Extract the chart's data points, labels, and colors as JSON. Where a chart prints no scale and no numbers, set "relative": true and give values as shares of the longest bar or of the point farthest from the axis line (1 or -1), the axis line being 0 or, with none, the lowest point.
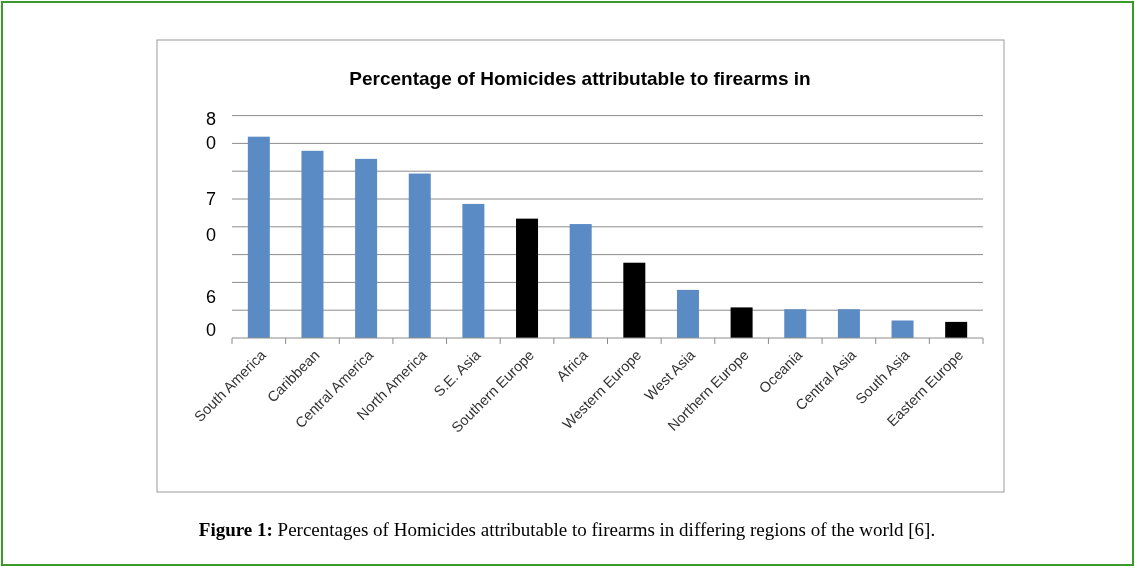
{
  "chart_data": {
    "type": "bar",
    "title": "Percentage of Homicides attributable to firearms in",
    "categories": [
      "South America",
      "Caribbean",
      "Central America",
      "North America",
      "S.E. Asia",
      "Southern Europe",
      "Africa",
      "Western Europe",
      "West Asia",
      "Northern Europe",
      "Oceania",
      "Central Asia",
      "South Asia",
      "Eastern Europe"
    ],
    "values": [
      1,
      0.93,
      0.89,
      0.817,
      0.666,
      0.593,
      0.566,
      0.374,
      0.239,
      0.152,
      0.143,
      0.143,
      0.087,
      0.08
    ],
    "colors": [
      "#5b8bc4",
      "#5b8bc4",
      "#5b8bc4",
      "#5b8bc4",
      "#5b8bc4",
      "#000000",
      "#5b8bc4",
      "#000000",
      "#5b8bc4",
      "#000000",
      "#5b8bc4",
      "#5b8bc4",
      "#5b8bc4",
      "#000000"
    ],
    "relative": true,
    "grid": "y",
    "annotations": [
      "8",
      "0",
      "7",
      "0",
      "6",
      "0",
      "Figure 1:",
      "Percentages of Homicides attributable to firearms in differing regions of the world [6]."
    ]
  }
}
